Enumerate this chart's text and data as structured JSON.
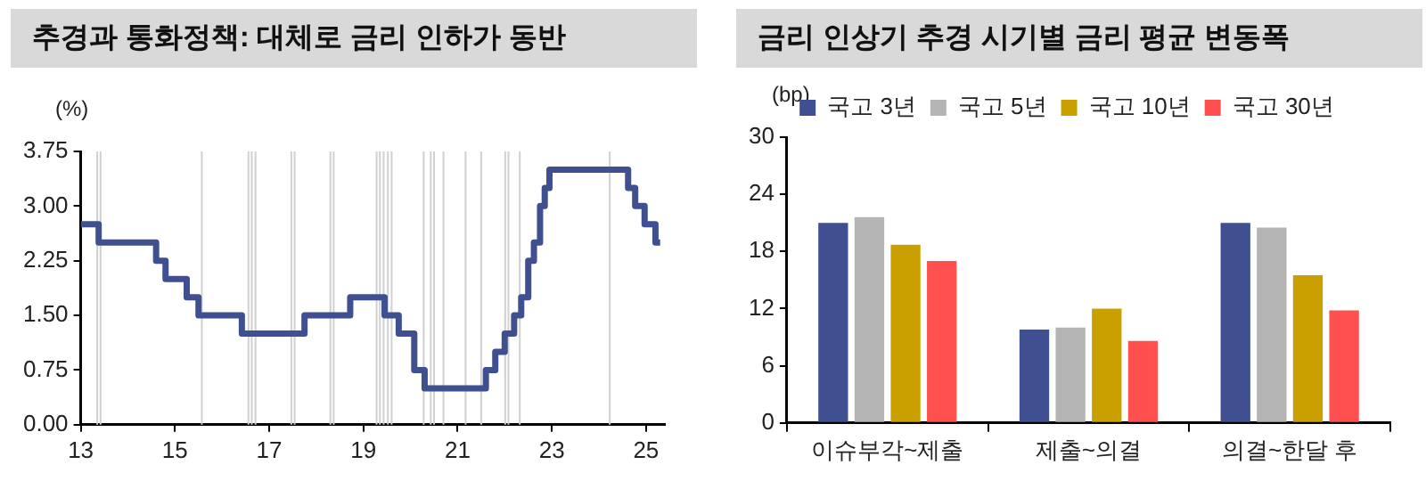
{
  "chart_data": [
    {
      "type": "step",
      "title": "추경과 통화정책: 대체로 금리 인하가 동반",
      "ylabel": "(%)",
      "x": [
        2013,
        2013.38,
        2014.6,
        2014.8,
        2015.25,
        2015.5,
        2016.42,
        2017.75,
        2018.72,
        2019.45,
        2019.75,
        2020.08,
        2020.3,
        2021.6,
        2021.8,
        2022.0,
        2022.2,
        2022.35,
        2022.5,
        2022.62,
        2022.75,
        2022.85,
        2022.95,
        2024.62,
        2024.77,
        2024.97,
        2025.2,
        2025.3
      ],
      "series": [
        {
          "color": "#3f4f8f",
          "values": [
            2.75,
            2.5,
            2.25,
            2.0,
            1.75,
            1.5,
            1.25,
            1.5,
            1.75,
            1.5,
            1.25,
            0.75,
            0.5,
            0.75,
            1.0,
            1.25,
            1.5,
            1.75,
            2.25,
            2.5,
            3.0,
            3.25,
            3.5,
            3.25,
            3.0,
            2.75,
            2.5,
            2.5
          ]
        }
      ],
      "xlim": [
        2013,
        2025.4
      ],
      "xticks": [
        {
          "value": 2013,
          "label": "13"
        },
        {
          "value": 2015,
          "label": "15"
        },
        {
          "value": 2017,
          "label": "17"
        },
        {
          "value": 2019,
          "label": "19"
        },
        {
          "value": 2021,
          "label": "21"
        },
        {
          "value": 2023,
          "label": "23"
        },
        {
          "value": 2025,
          "label": "25"
        }
      ],
      "ylim": [
        0,
        3.75
      ],
      "yticks": [
        {
          "value": 0,
          "label": "0.00"
        },
        {
          "value": 0.75,
          "label": "0.75"
        },
        {
          "value": 1.5,
          "label": "1.50"
        },
        {
          "value": 2.25,
          "label": "2.25"
        },
        {
          "value": 3,
          "label": "3.00"
        },
        {
          "value": 3.75,
          "label": "3.75"
        }
      ],
      "ref_lines": [
        {
          "axis": "x",
          "value": 2013.35,
          "color": "#d0d0d0"
        },
        {
          "axis": "x",
          "value": 2013.42,
          "color": "#d0d0d0"
        },
        {
          "axis": "x",
          "value": 2015.57,
          "color": "#d0d0d0"
        },
        {
          "axis": "x",
          "value": 2016.56,
          "color": "#d0d0d0"
        },
        {
          "axis": "x",
          "value": 2016.63,
          "color": "#d0d0d0"
        },
        {
          "axis": "x",
          "value": 2016.71,
          "color": "#d0d0d0"
        },
        {
          "axis": "x",
          "value": 2017.47,
          "color": "#d0d0d0"
        },
        {
          "axis": "x",
          "value": 2017.54,
          "color": "#d0d0d0"
        },
        {
          "axis": "x",
          "value": 2018.3,
          "color": "#d0d0d0"
        },
        {
          "axis": "x",
          "value": 2018.37,
          "color": "#d0d0d0"
        },
        {
          "axis": "x",
          "value": 2019.28,
          "color": "#d0d0d0"
        },
        {
          "axis": "x",
          "value": 2019.35,
          "color": "#d0d0d0"
        },
        {
          "axis": "x",
          "value": 2019.43,
          "color": "#d0d0d0"
        },
        {
          "axis": "x",
          "value": 2019.52,
          "color": "#d0d0d0"
        },
        {
          "axis": "x",
          "value": 2019.6,
          "color": "#d0d0d0"
        },
        {
          "axis": "x",
          "value": 2020.28,
          "color": "#d0d0d0"
        },
        {
          "axis": "x",
          "value": 2020.43,
          "color": "#d0d0d0"
        },
        {
          "axis": "x",
          "value": 2020.5,
          "color": "#d0d0d0"
        },
        {
          "axis": "x",
          "value": 2020.7,
          "color": "#d0d0d0"
        },
        {
          "axis": "x",
          "value": 2021.17,
          "color": "#d0d0d0"
        },
        {
          "axis": "x",
          "value": 2021.5,
          "color": "#d0d0d0"
        },
        {
          "axis": "x",
          "value": 2022.01,
          "color": "#d0d0d0"
        },
        {
          "axis": "x",
          "value": 2022.08,
          "color": "#d0d0d0"
        },
        {
          "axis": "x",
          "value": 2022.32,
          "color": "#d0d0d0"
        },
        {
          "axis": "x",
          "value": 2024.23,
          "color": "#d0d0d0"
        }
      ]
    },
    {
      "type": "bar",
      "title": "금리 인상기 추경 시기별 금리 평균 변동폭",
      "ylabel": "(bp)",
      "categories": [
        "이슈부각~제출",
        "제출~의결",
        "의결~한달 후"
      ],
      "series": [
        {
          "name": "국고 3년",
          "color": "#3f4f8f",
          "values": [
            21,
            9.8,
            21
          ]
        },
        {
          "name": "국고 5년",
          "color": "#b4b4b4",
          "values": [
            21.6,
            10,
            20.5
          ]
        },
        {
          "name": "국고 10년",
          "color": "#c9a000",
          "values": [
            18.7,
            12,
            15.5
          ]
        },
        {
          "name": "국고 30년",
          "color": "#ff5050",
          "values": [
            17,
            8.6,
            11.8
          ]
        }
      ],
      "ylim": [
        0,
        30
      ],
      "yticks": [
        0,
        6,
        12,
        18,
        24,
        30
      ],
      "legend": "top"
    }
  ]
}
